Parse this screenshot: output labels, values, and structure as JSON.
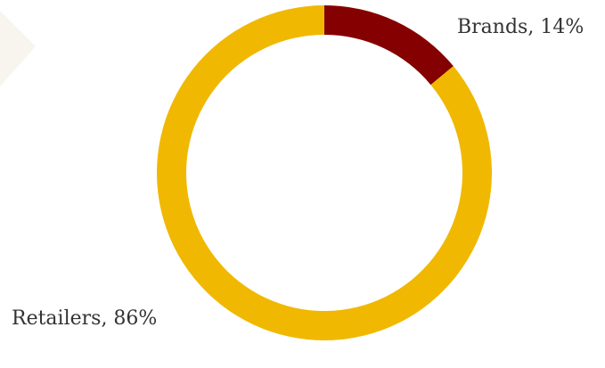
{
  "chart_data": {
    "type": "pie",
    "variant": "donut",
    "slices": [
      {
        "label": "Brands",
        "value": 14,
        "display": "Brands, 14%",
        "color": "#850000"
      },
      {
        "label": "Retailers",
        "value": 86,
        "display": "Retailers, 86%",
        "color": "#f0b800"
      }
    ],
    "start_angle_deg": 0,
    "direction": "clockwise",
    "legend": "none",
    "label_style": "outside"
  },
  "decoration": {
    "background_shape_color": "#f8f5ee"
  }
}
